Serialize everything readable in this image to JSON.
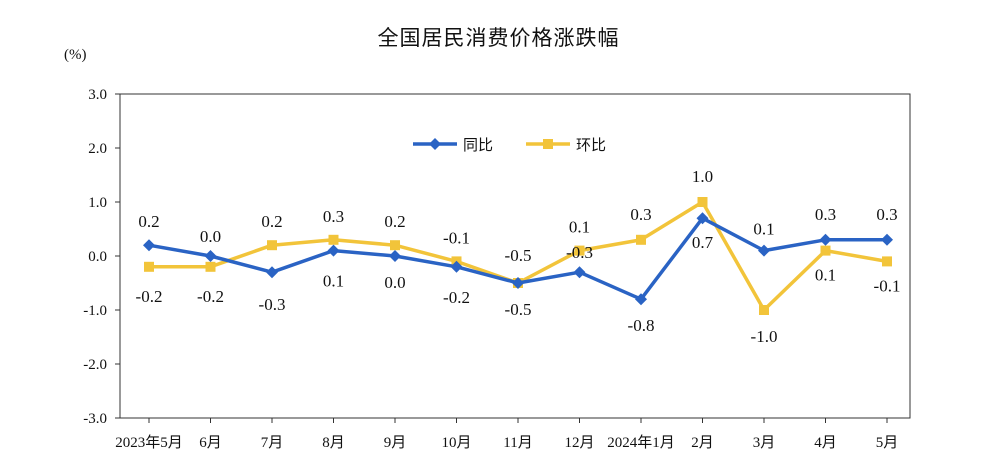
{
  "chart_data": {
    "type": "line",
    "title": "全国居民消费价格涨跌幅",
    "unit_label": "(%)",
    "categories": [
      "2023年5月",
      "6月",
      "7月",
      "8月",
      "9月",
      "10月",
      "11月",
      "12月",
      "2024年1月",
      "2月",
      "3月",
      "4月",
      "5月"
    ],
    "ylim": [
      -3.0,
      3.0
    ],
    "yticks": [
      "3.0",
      "2.0",
      "1.0",
      "0.0",
      "-1.0",
      "-2.0",
      "-3.0"
    ],
    "grid": false,
    "legend_position": "top-center",
    "series": [
      {
        "name": "同比",
        "color": "#2a63c4",
        "marker": "diamond",
        "values": [
          0.2,
          0.0,
          -0.3,
          0.1,
          0.0,
          -0.2,
          -0.5,
          -0.3,
          -0.8,
          0.7,
          0.1,
          0.3,
          0.3
        ],
        "labels": [
          "0.2",
          "0.0",
          "-0.3",
          "0.1",
          "0.0",
          "-0.2",
          "-0.5",
          "-0.3",
          "-0.8",
          "0.7",
          "0.1",
          "0.3",
          "0.3"
        ]
      },
      {
        "name": "环比",
        "color": "#f2c43a",
        "marker": "square",
        "values": [
          -0.2,
          -0.2,
          0.2,
          0.3,
          0.2,
          -0.1,
          -0.5,
          0.1,
          0.3,
          1.0,
          -1.0,
          0.1,
          -0.1
        ],
        "labels": [
          "-0.2",
          "-0.2",
          "0.2",
          "0.3",
          "0.2",
          "-0.1",
          "-0.5",
          "0.1",
          "0.3",
          "1.0",
          "-1.0",
          "0.1",
          "-0.1"
        ]
      }
    ]
  }
}
